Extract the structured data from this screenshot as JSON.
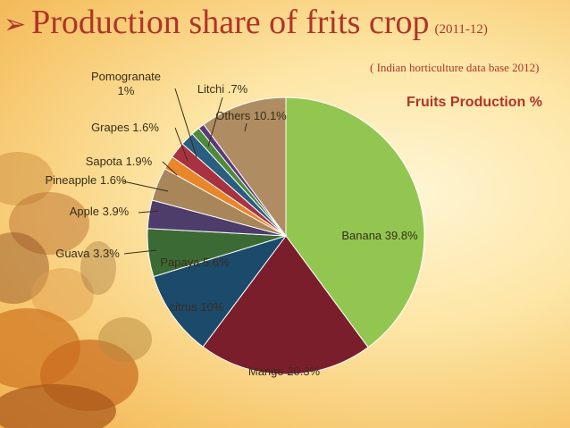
{
  "slide": {
    "title": "Production share of frits crop",
    "title_year": "(2011-12)",
    "source": "( Indian horticulture data base 2012)",
    "bullet_icon": "arrow-bullet-icon"
  },
  "chart_data": {
    "type": "pie",
    "title": "Fruits Production %",
    "slices": [
      {
        "name": "Banana",
        "value": 39.8,
        "label": "Banana 39.8%",
        "color": "#92c650"
      },
      {
        "name": "Mango",
        "value": 20.3,
        "label": "Mango 20.3%",
        "color": "#7b1e2b"
      },
      {
        "name": "citrus",
        "value": 10,
        "label": "citrus 10%",
        "color": "#1b4a6b"
      },
      {
        "name": "Papaya",
        "value": 5.6,
        "label": "Papaya 5.6%",
        "color": "#3c6a34"
      },
      {
        "name": "Guava",
        "value": 3.3,
        "label": "Guava 3.3%",
        "color": "#4e3c6a"
      },
      {
        "name": "Apple",
        "value": 3.9,
        "label": "Apple 3.9%",
        "color": "#a8865a"
      },
      {
        "name": "Pineapple",
        "value": 1.6,
        "label": "Pineapple  1.6%",
        "color": "#e8862a"
      },
      {
        "name": "Sapota",
        "value": 1.9,
        "label": "Sapota  1.9%",
        "color": "#a83240"
      },
      {
        "name": "Grapes",
        "value": 1.6,
        "label": "Grapes  1.6%",
        "color": "#2a5e80"
      },
      {
        "name": "Pomogranate",
        "value": 1,
        "label": "Pomogranate 1%",
        "color": "#4e8a3a"
      },
      {
        "name": "Litchi",
        "value": 0.7,
        "label": "Litchi  .7%",
        "color": "#5a3a7a"
      },
      {
        "name": "Others",
        "value": 10.1,
        "label": "Others  10.1%",
        "color": "#b08c62"
      }
    ],
    "start_angle_deg": 0,
    "direction": "clockwise"
  }
}
